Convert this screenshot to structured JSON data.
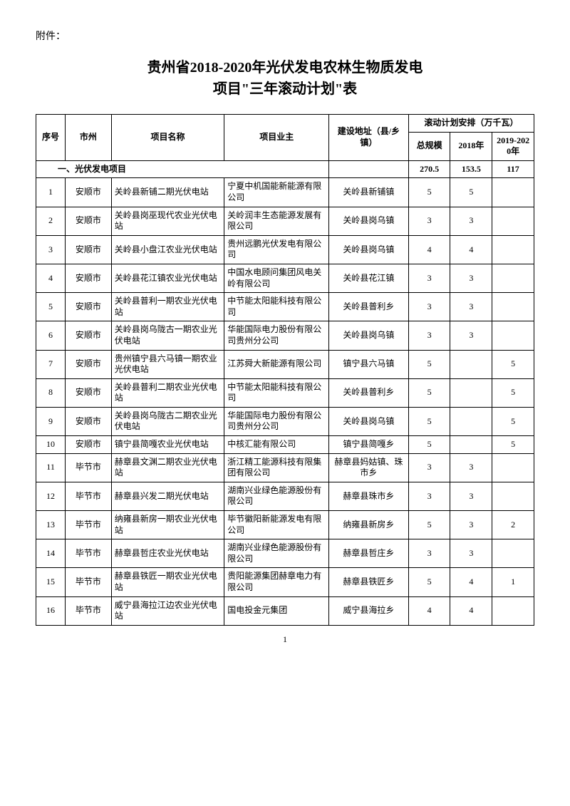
{
  "attachment_label": "附件：",
  "title_line1": "贵州省2018-2020年光伏发电农林生物质发电",
  "title_line2": "项目\"三年滚动计划\"表",
  "headers": {
    "seq": "序号",
    "city": "市州",
    "name": "项目名称",
    "owner": "项目业主",
    "addr": "建设地址（县/乡镇）",
    "plan_group": "滚动计划安排（万千瓦）",
    "total": "总规模",
    "y2018": "2018年",
    "y2019_2020": "2019-2020年"
  },
  "section": {
    "label": "一、光伏发电项目",
    "total": "270.5",
    "y2018": "153.5",
    "y2019_2020": "117"
  },
  "rows": [
    {
      "seq": "1",
      "city": "安顺市",
      "name": "关岭县新铺二期光伏电站",
      "owner": "宁夏中机国能新能源有限公司",
      "addr": "关岭县新铺镇",
      "total": "5",
      "y2018": "5",
      "y2019_2020": ""
    },
    {
      "seq": "2",
      "city": "安顺市",
      "name": "关岭县岗巫现代农业光伏电站",
      "owner": "关岭润丰生态能源发展有限公司",
      "addr": "关岭县岗乌镇",
      "total": "3",
      "y2018": "3",
      "y2019_2020": ""
    },
    {
      "seq": "3",
      "city": "安顺市",
      "name": "关岭县小盘江农业光伏电站",
      "owner": "贵州远鹏光伏发电有限公司",
      "addr": "关岭县岗乌镇",
      "total": "4",
      "y2018": "4",
      "y2019_2020": ""
    },
    {
      "seq": "4",
      "city": "安顺市",
      "name": "关岭县花江镇农业光伏电站",
      "owner": "中国水电顾问集团风电关岭有限公司",
      "addr": "关岭县花江镇",
      "total": "3",
      "y2018": "3",
      "y2019_2020": ""
    },
    {
      "seq": "5",
      "city": "安顺市",
      "name": "关岭县普利一期农业光伏电站",
      "owner": "中节能太阳能科技有限公司",
      "addr": "关岭县普利乡",
      "total": "3",
      "y2018": "3",
      "y2019_2020": ""
    },
    {
      "seq": "6",
      "city": "安顺市",
      "name": "关岭县岗乌陇古一期农业光伏电站",
      "owner": "华能国际电力股份有限公司贵州分公司",
      "addr": "关岭县岗乌镇",
      "total": "3",
      "y2018": "3",
      "y2019_2020": ""
    },
    {
      "seq": "7",
      "city": "安顺市",
      "name": "贵州镇宁县六马镇一期农业光伏电站",
      "owner": "江苏舜大新能源有限公司",
      "addr": "镇宁县六马镇",
      "total": "5",
      "y2018": "",
      "y2019_2020": "5"
    },
    {
      "seq": "8",
      "city": "安顺市",
      "name": "关岭县普利二期农业光伏电站",
      "owner": "中节能太阳能科技有限公司",
      "addr": "关岭县普利乡",
      "total": "5",
      "y2018": "",
      "y2019_2020": "5"
    },
    {
      "seq": "9",
      "city": "安顺市",
      "name": "关岭县岗乌陇古二期农业光伏电站",
      "owner": "华能国际电力股份有限公司贵州分公司",
      "addr": "关岭县岗乌镇",
      "total": "5",
      "y2018": "",
      "y2019_2020": "5"
    },
    {
      "seq": "10",
      "city": "安顺市",
      "name": "镇宁县简嘎农业光伏电站",
      "owner": "中核汇能有限公司",
      "addr": "镇宁县简嘎乡",
      "total": "5",
      "y2018": "",
      "y2019_2020": "5"
    },
    {
      "seq": "11",
      "city": "毕节市",
      "name": "赫章县文渊二期农业光伏电站",
      "owner": "浙江精工能源科技有限集团有限公司",
      "addr": "赫章县妈姑镇、珠市乡",
      "total": "3",
      "y2018": "3",
      "y2019_2020": ""
    },
    {
      "seq": "12",
      "city": "毕节市",
      "name": "赫章县兴发二期光伏电站",
      "owner": "湖南兴业绿色能源股份有限公司",
      "addr": "赫章县珠市乡",
      "total": "3",
      "y2018": "3",
      "y2019_2020": ""
    },
    {
      "seq": "13",
      "city": "毕节市",
      "name": "纳雍县新房一期农业光伏电站",
      "owner": "毕节徽阳新能源发电有限公司",
      "addr": "纳雍县新房乡",
      "total": "5",
      "y2018": "3",
      "y2019_2020": "2"
    },
    {
      "seq": "14",
      "city": "毕节市",
      "name": "赫章县哲庄农业光伏电站",
      "owner": "湖南兴业绿色能源股份有限公司",
      "addr": "赫章县哲庄乡",
      "total": "3",
      "y2018": "3",
      "y2019_2020": ""
    },
    {
      "seq": "15",
      "city": "毕节市",
      "name": "赫章县铁匠一期农业光伏电站",
      "owner": "贵阳能源集团赫章电力有限公司",
      "addr": "赫章县铁匠乡",
      "total": "5",
      "y2018": "4",
      "y2019_2020": "1"
    },
    {
      "seq": "16",
      "city": "毕节市",
      "name": "威宁县海拉江边农业光伏电站",
      "owner": "国电投金元集团",
      "addr": "威宁县海拉乡",
      "total": "4",
      "y2018": "4",
      "y2019_2020": ""
    }
  ],
  "page_number": "1"
}
